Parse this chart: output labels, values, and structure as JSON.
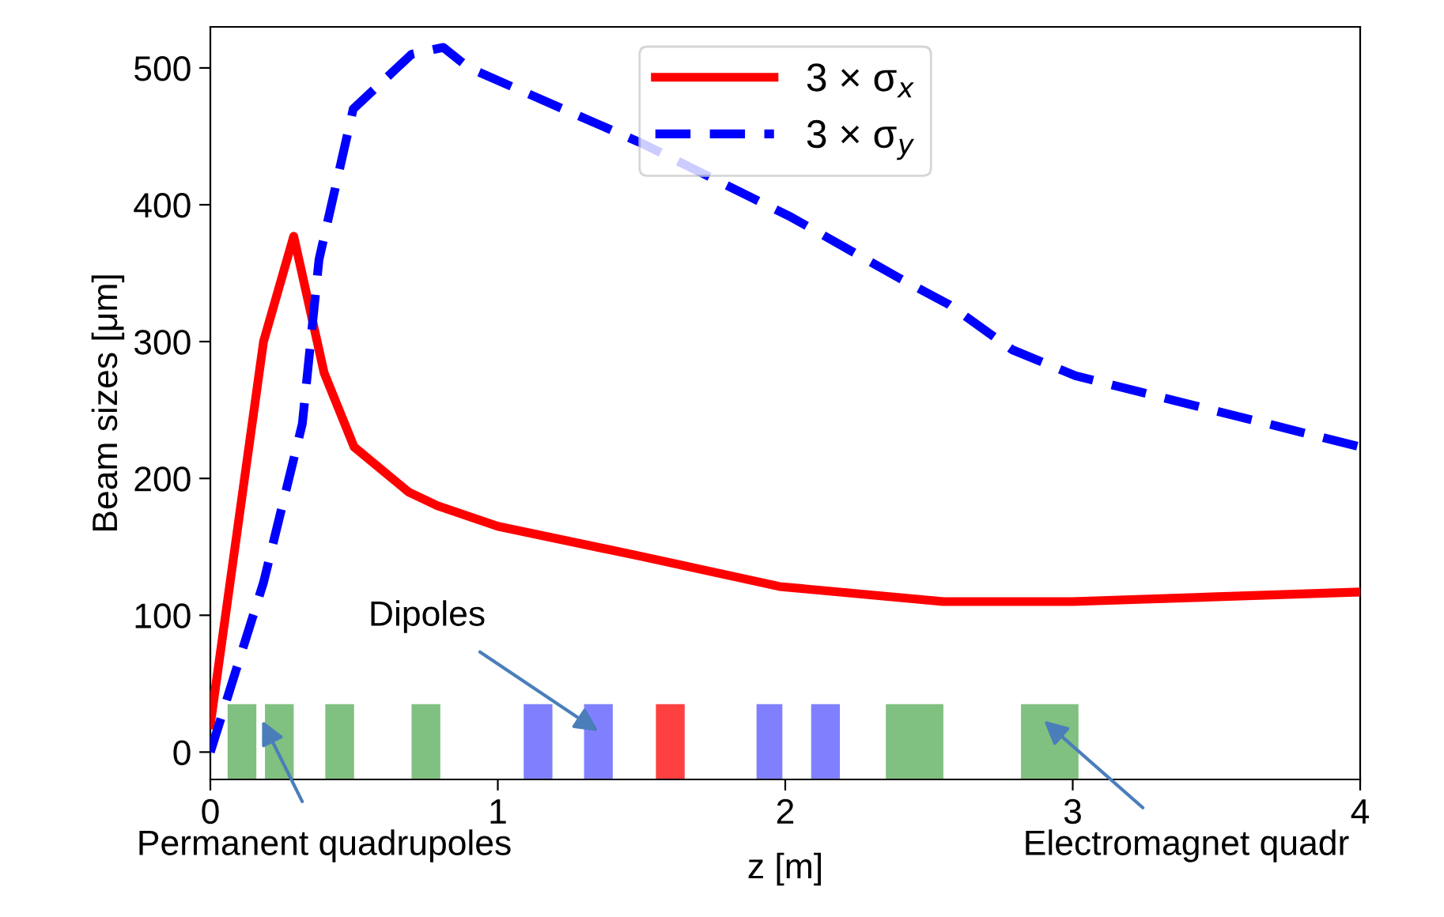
{
  "chart_data": {
    "type": "line",
    "xlabel": "z [m]",
    "ylabel": "Beam sizes [μm]",
    "xlim": [
      0,
      4
    ],
    "xticks": [
      0,
      1,
      2,
      3,
      4
    ],
    "ylim": [
      -20,
      530
    ],
    "yticks": [
      0,
      100,
      200,
      300,
      400,
      500
    ],
    "grid": false,
    "legend": "top center",
    "marker": "none",
    "series": [
      {
        "name": "3 × σ$_{x}$",
        "color": "#ff0000",
        "line_style": "solid",
        "x": [
          0,
          0.185,
          0.29,
          0.396,
          0.5,
          0.69,
          0.79,
          1.0,
          1.5,
          1.98,
          2.55,
          3.0,
          4.0
        ],
        "values": [
          20,
          300,
          377,
          277,
          223,
          190,
          180,
          165,
          143,
          121,
          110,
          110,
          117
        ]
      },
      {
        "name": "3 × σ$_{y}$",
        "color": "#0000ff",
        "line_style": "dashed",
        "x": [
          0,
          0.185,
          0.32,
          0.378,
          0.497,
          0.7,
          0.81,
          0.9,
          1.5,
          2.02,
          2.4,
          2.57,
          2.79,
          3.01,
          4.0
        ],
        "values": [
          0,
          124,
          240,
          360,
          470,
          510,
          515,
          500,
          445,
          391,
          346,
          327,
          294,
          275,
          223
        ]
      }
    ],
    "bands": [
      {
        "axis": "x",
        "from": 0.06,
        "to": 0.16,
        "color": "#80c080"
      },
      {
        "axis": "x",
        "from": 0.19,
        "to": 0.29,
        "color": "#80c080"
      },
      {
        "axis": "x",
        "from": 0.4,
        "to": 0.5,
        "color": "#80c080"
      },
      {
        "axis": "x",
        "from": 0.7,
        "to": 0.8,
        "color": "#80c080"
      },
      {
        "axis": "x",
        "from": 1.09,
        "to": 1.19,
        "color": "#8080ff"
      },
      {
        "axis": "x",
        "from": 1.3,
        "to": 1.4,
        "color": "#8080ff"
      },
      {
        "axis": "x",
        "from": 1.55,
        "to": 1.65,
        "color": "#ff4040"
      },
      {
        "axis": "x",
        "from": 1.9,
        "to": 1.99,
        "color": "#8080ff"
      },
      {
        "axis": "x",
        "from": 2.09,
        "to": 2.19,
        "color": "#8080ff"
      },
      {
        "axis": "x",
        "from": 2.35,
        "to": 2.55,
        "color": "#80c080"
      },
      {
        "axis": "x",
        "from": 2.82,
        "to": 3.02,
        "color": "#80c080"
      }
    ],
    "annotations": [
      "Dipoles",
      {
        "text": "Permanent quadrupoles",
        "x": 0.18,
        "y": 23
      },
      "Electromagnet quadr"
    ]
  }
}
